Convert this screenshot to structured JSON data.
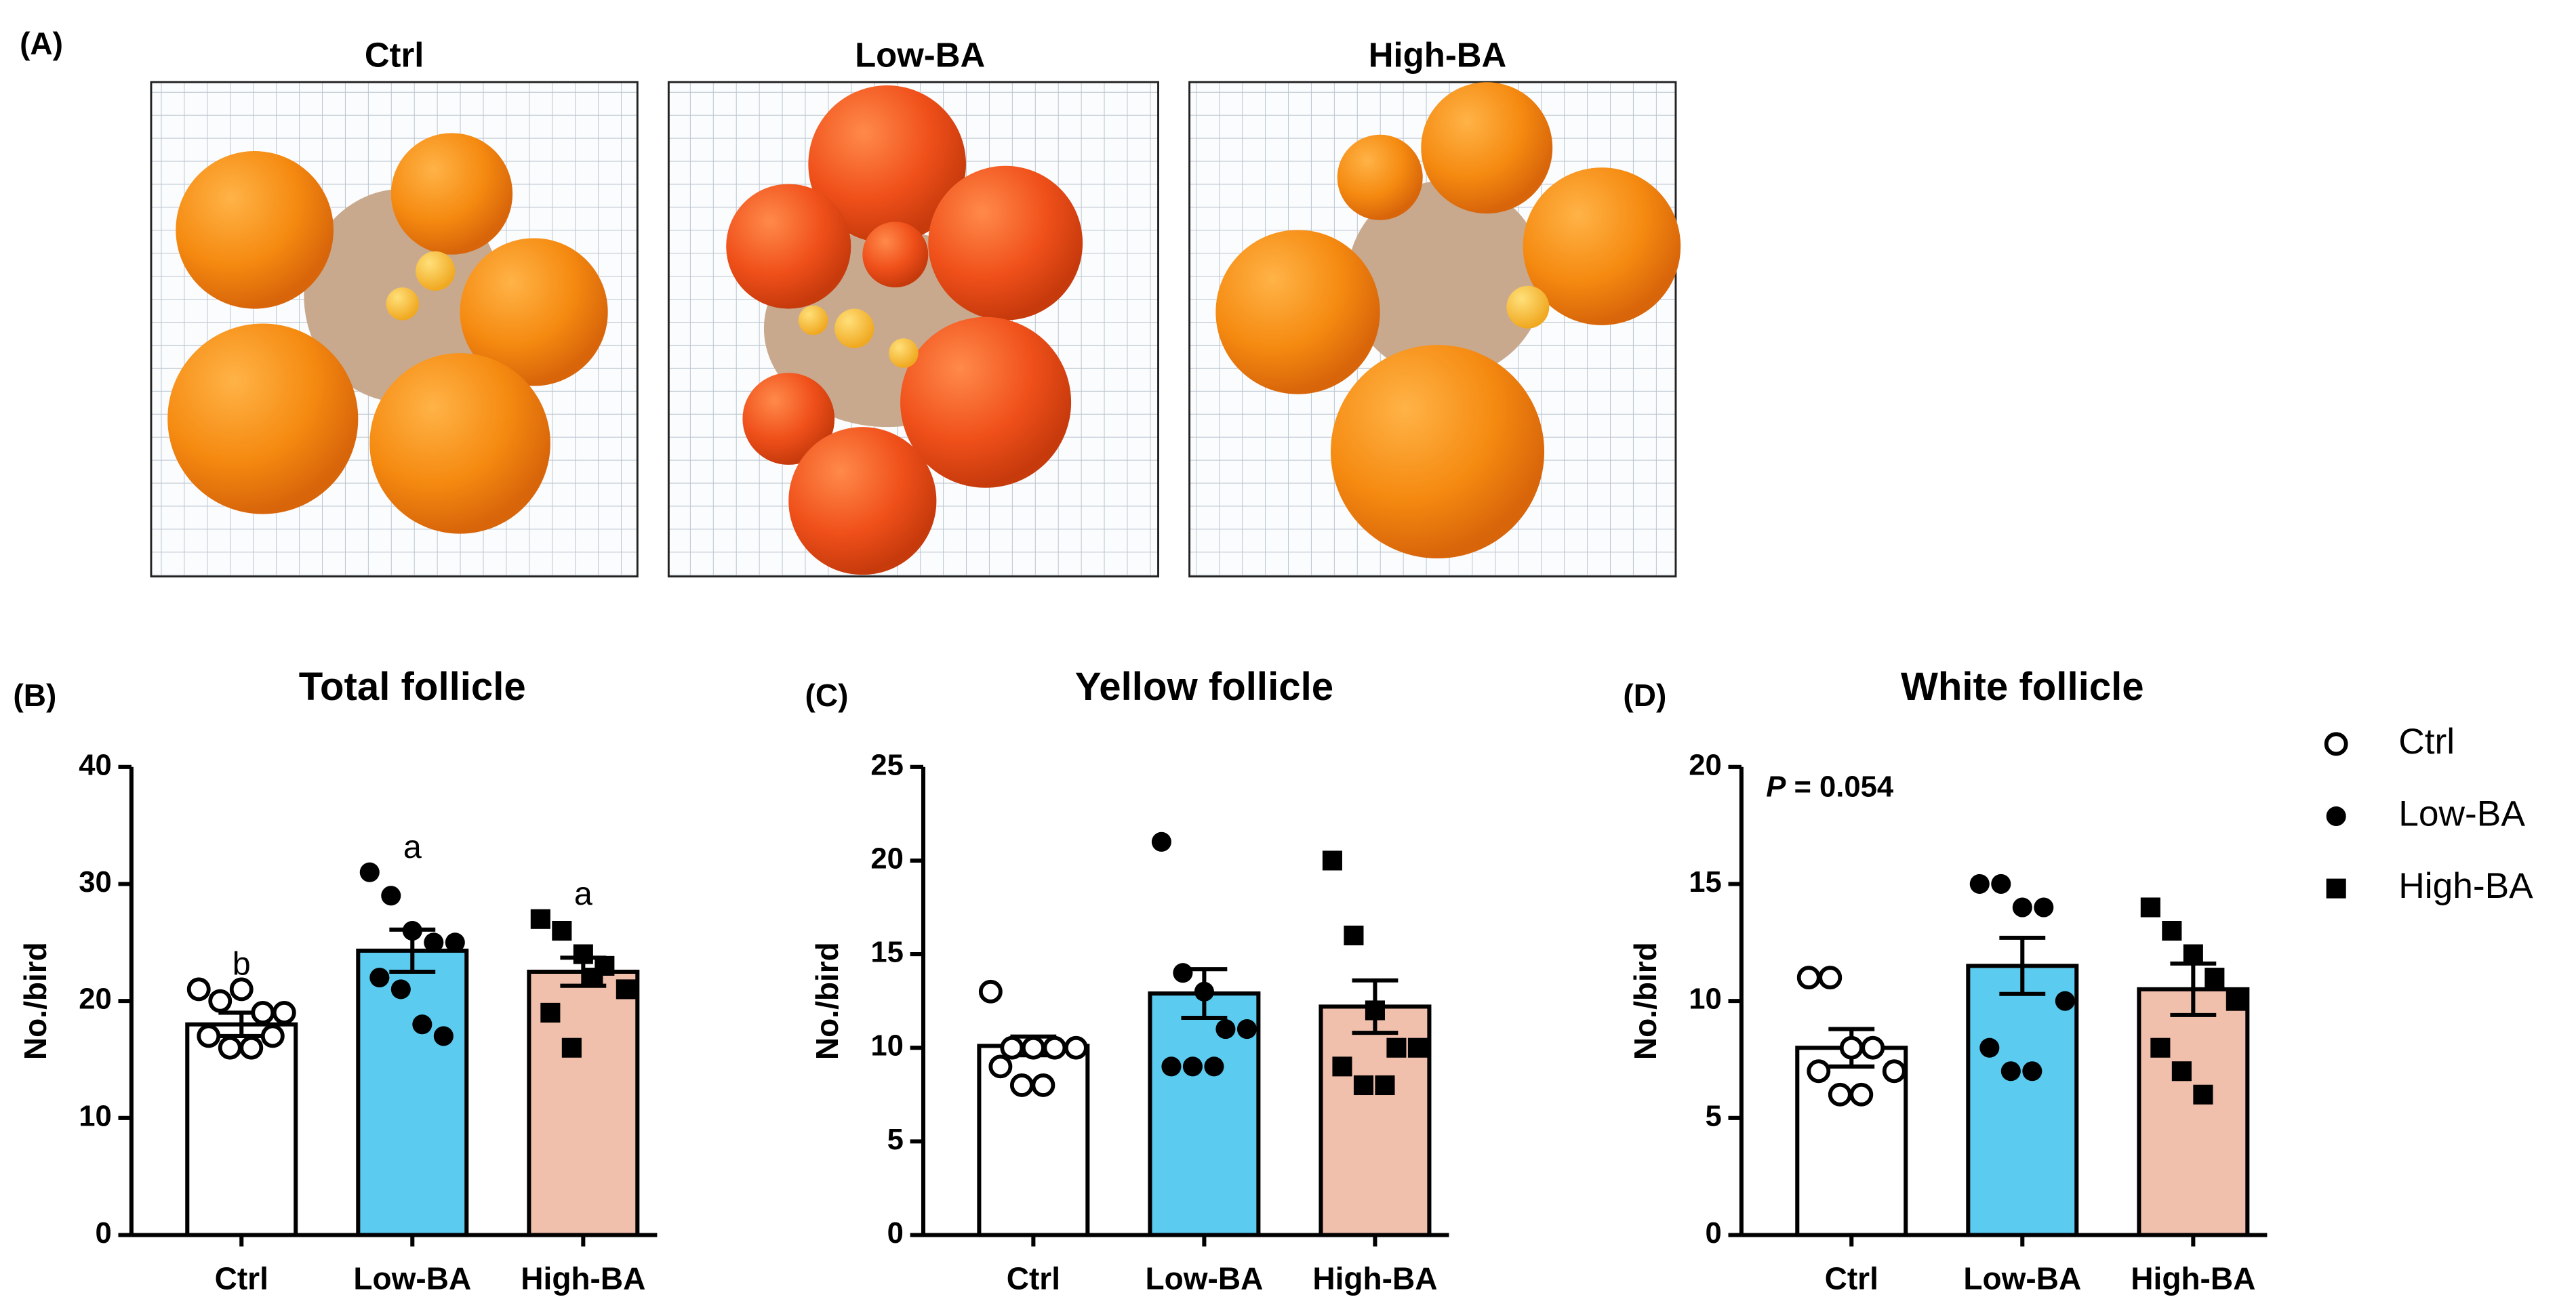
{
  "panel_a": {
    "label": "(A)",
    "titles": [
      "Ctrl",
      "Low-BA",
      "High-BA"
    ]
  },
  "legend": {
    "entries": [
      "Ctrl",
      "Low-BA",
      "High-BA"
    ],
    "markers": [
      "open-circle",
      "circle",
      "square"
    ]
  },
  "chart_data": [
    {
      "type": "bar",
      "panel": "(B)",
      "title": "Total follicle",
      "ylabel": "No./bird",
      "categories": [
        "Ctrl",
        "Low-BA",
        "High-BA"
      ],
      "values": [
        18,
        24.3,
        22.5
      ],
      "errors": [
        1,
        1.8,
        1.2
      ],
      "colors": [
        "#ffffff",
        "#5bcbef",
        "#f0c0ac"
      ],
      "points": [
        [
          21,
          20,
          21,
          19,
          19,
          17,
          16,
          16,
          17
        ],
        [
          31,
          29,
          26,
          25,
          25,
          22,
          21,
          18,
          17
        ],
        [
          27,
          26,
          24,
          23,
          21,
          19,
          16,
          22
        ]
      ],
      "letters": [
        "b",
        "a",
        "a"
      ],
      "ylim": [
        0,
        40
      ],
      "yticks": [
        0,
        10,
        20,
        30,
        40
      ]
    },
    {
      "type": "bar",
      "panel": "(C)",
      "title": "Yellow follicle",
      "ylabel": "No./bird",
      "categories": [
        "Ctrl",
        "Low-BA",
        "High-BA"
      ],
      "values": [
        10.1,
        12.9,
        12.2
      ],
      "errors": [
        0.5,
        1.3,
        1.4
      ],
      "colors": [
        "#ffffff",
        "#5bcbef",
        "#f0c0ac"
      ],
      "points": [
        [
          13,
          10,
          10,
          10,
          10,
          9,
          8,
          8
        ],
        [
          21,
          14,
          13,
          11,
          11,
          9,
          9,
          9
        ],
        [
          20,
          16,
          12,
          10,
          10,
          9,
          8,
          8
        ]
      ],
      "ylim": [
        0,
        25
      ],
      "yticks": [
        0,
        5,
        10,
        15,
        20,
        25
      ]
    },
    {
      "type": "bar",
      "panel": "(D)",
      "title": "White follicle",
      "ylabel": "No./bird",
      "categories": [
        "Ctrl",
        "Low-BA",
        "High-BA"
      ],
      "values": [
        8,
        11.5,
        10.5
      ],
      "errors": [
        0.8,
        1.2,
        1.1
      ],
      "colors": [
        "#ffffff",
        "#5bcbef",
        "#f0c0ac"
      ],
      "points": [
        [
          11,
          11,
          8,
          8,
          7,
          7,
          6,
          6
        ],
        [
          15,
          15,
          14,
          14,
          10,
          8,
          7,
          7
        ],
        [
          14,
          13,
          12,
          11,
          10,
          8,
          7,
          6
        ]
      ],
      "annotation": [
        "P",
        "= 0.054"
      ],
      "ylim": [
        0,
        20
      ],
      "yticks": [
        0,
        5,
        10,
        15,
        20
      ]
    }
  ]
}
